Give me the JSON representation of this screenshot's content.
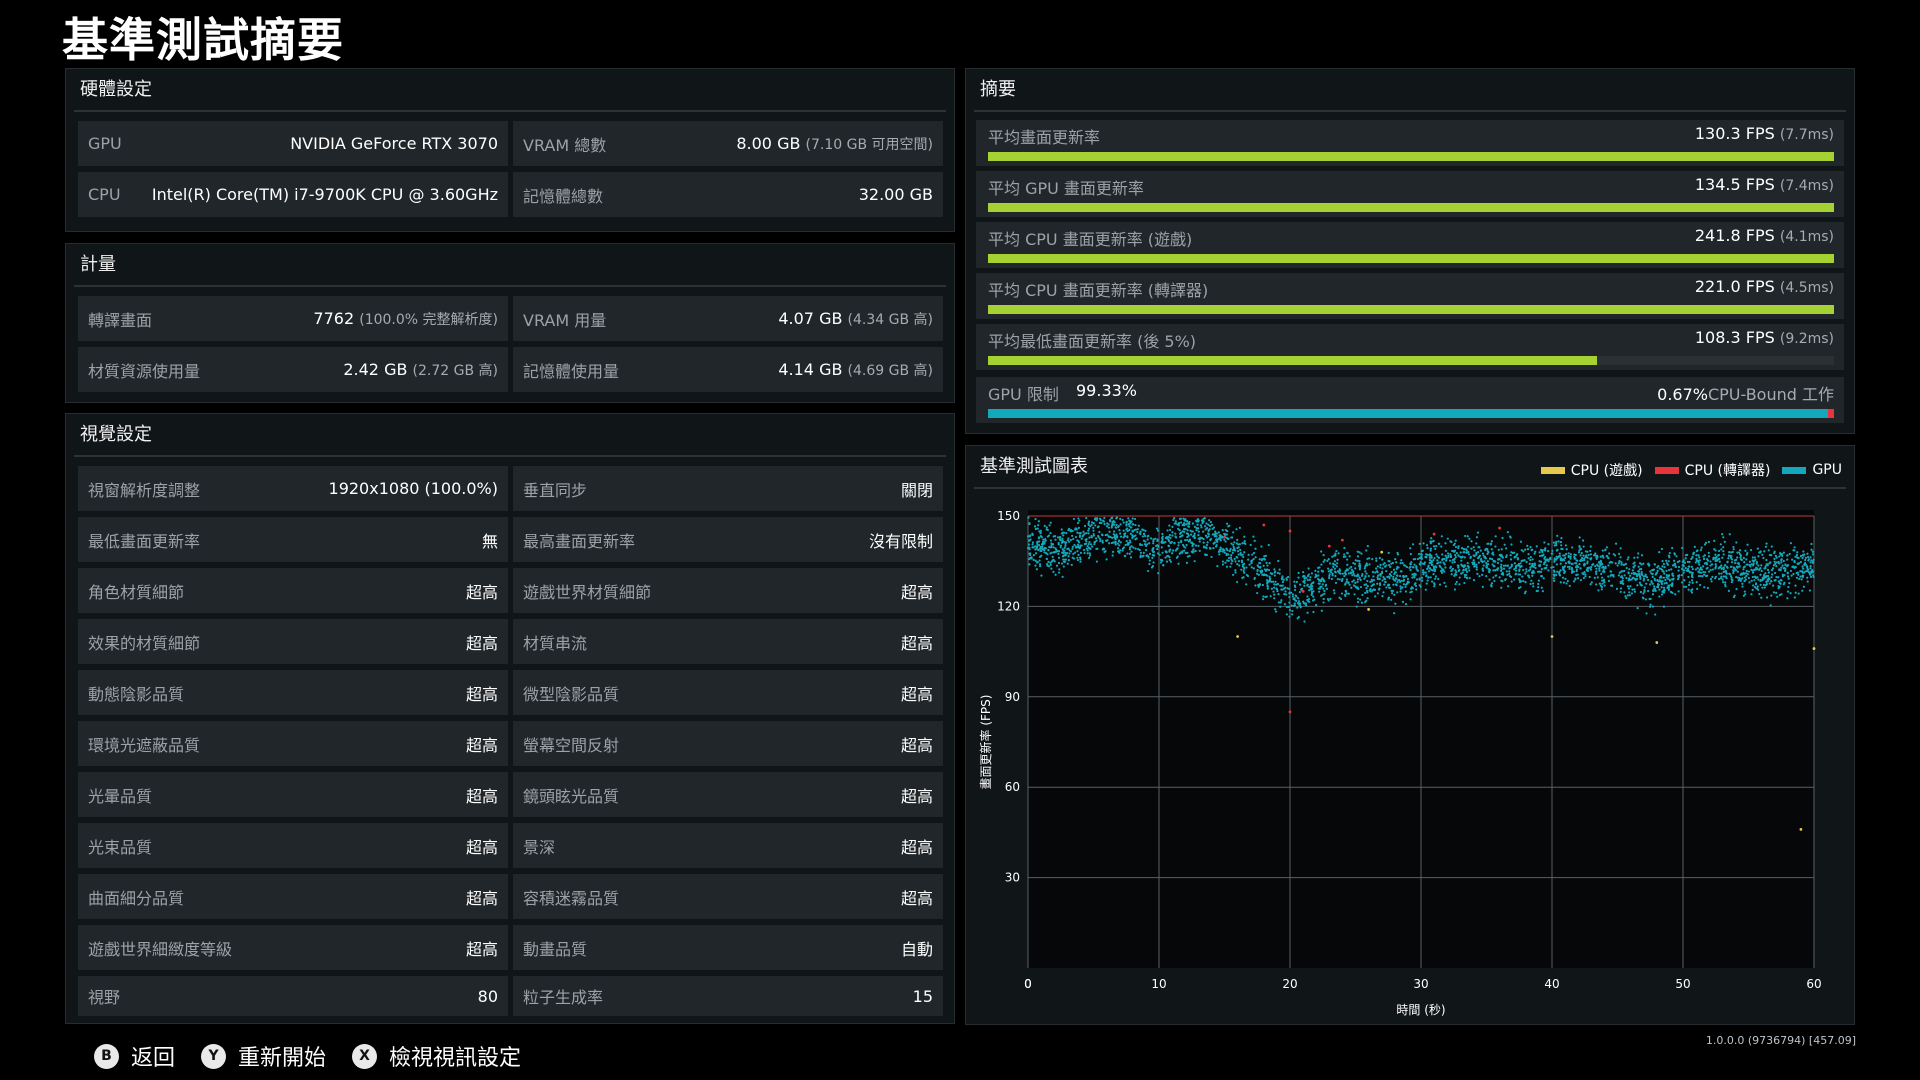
{
  "title": "基準測試摘要",
  "hardware": {
    "header": "硬體設定",
    "cells": [
      {
        "label": "GPU",
        "value": "NVIDIA GeForce RTX 3070",
        "sub": ""
      },
      {
        "label": "VRAM 總數",
        "value": "8.00 GB",
        "sub": "(7.10 GB 可用空間)"
      },
      {
        "label": "CPU",
        "value": "Intel(R) Core(TM) i7-9700K CPU @ 3.60GHz",
        "sub": ""
      },
      {
        "label": "記憶體總數",
        "value": "32.00 GB",
        "sub": ""
      }
    ]
  },
  "metrics": {
    "header": "計量",
    "cells": [
      {
        "label": "轉譯畫面",
        "value": "7762",
        "sub": "(100.0% 完整解析度)"
      },
      {
        "label": "VRAM 用量",
        "value": "4.07 GB",
        "sub": "(4.34 GB 高)"
      },
      {
        "label": "材質資源使用量",
        "value": "2.42 GB",
        "sub": "(2.72 GB 高)"
      },
      {
        "label": "記憶體使用量",
        "value": "4.14 GB",
        "sub": "(4.69 GB 高)"
      }
    ]
  },
  "visual": {
    "header": "視覺設定",
    "cells": [
      {
        "label": "視窗解析度調整",
        "value": "1920x1080 (100.0%)"
      },
      {
        "label": "垂直同步",
        "value": "關閉"
      },
      {
        "label": "最低畫面更新率",
        "value": "無"
      },
      {
        "label": "最高畫面更新率",
        "value": "沒有限制"
      },
      {
        "label": "角色材質細節",
        "value": "超高"
      },
      {
        "label": "遊戲世界材質細節",
        "value": "超高"
      },
      {
        "label": "效果的材質細節",
        "value": "超高"
      },
      {
        "label": "材質串流",
        "value": "超高"
      },
      {
        "label": "動態陰影品質",
        "value": "超高"
      },
      {
        "label": "微型陰影品質",
        "value": "超高"
      },
      {
        "label": "環境光遮蔽品質",
        "value": "超高"
      },
      {
        "label": "螢幕空間反射",
        "value": "超高"
      },
      {
        "label": "光暈品質",
        "value": "超高"
      },
      {
        "label": "鏡頭眩光品質",
        "value": "超高"
      },
      {
        "label": "光束品質",
        "value": "超高"
      },
      {
        "label": "景深",
        "value": "超高"
      },
      {
        "label": "曲面細分品質",
        "value": "超高"
      },
      {
        "label": "容積迷霧品質",
        "value": "超高"
      },
      {
        "label": "遊戲世界細緻度等級",
        "value": "超高"
      },
      {
        "label": "動畫品質",
        "value": "自動"
      },
      {
        "label": "視野",
        "value": "80"
      },
      {
        "label": "粒子生成率",
        "value": "15"
      }
    ]
  },
  "summary": {
    "header": "摘要",
    "rows": [
      {
        "label": "平均畫面更新率",
        "value": "130.3 FPS",
        "sub": "(7.7ms)",
        "fill": 1.0
      },
      {
        "label": "平均 GPU 畫面更新率",
        "value": "134.5 FPS",
        "sub": "(7.4ms)",
        "fill": 1.0
      },
      {
        "label": "平均 CPU 畫面更新率 (遊戲)",
        "value": "241.8 FPS",
        "sub": "(4.1ms)",
        "fill": 1.0
      },
      {
        "label": "平均 CPU 畫面更新率 (轉譯器)",
        "value": "221.0 FPS",
        "sub": "(4.5ms)",
        "fill": 1.0
      },
      {
        "label": "平均最低畫面更新率 (後 5%)",
        "value": "108.3 FPS",
        "sub": "(9.2ms)",
        "fill": 0.72
      }
    ],
    "gpu_bound": {
      "label": "GPU 限制",
      "value": "99.33%",
      "cpu_value": "0.67%",
      "cpu_label": "CPU-Bound 工作",
      "gpu_fraction": 0.9933
    }
  },
  "chart_panel": {
    "header": "基準測試圖表",
    "legend": [
      {
        "name": "CPU (遊戲)",
        "color": "#e6c84a"
      },
      {
        "name": "CPU (轉譯器)",
        "color": "#e8343a"
      },
      {
        "name": "GPU",
        "color": "#14a8bc"
      }
    ]
  },
  "chart_data": {
    "type": "scatter",
    "xlabel": "時間 (秒)",
    "ylabel": "畫面更新率 (FPS)",
    "xlim": [
      0,
      60
    ],
    "ylim": [
      0,
      150
    ],
    "xticks": [
      0,
      10,
      20,
      30,
      40,
      50,
      60
    ],
    "yticks": [
      30,
      60,
      90,
      120,
      150
    ],
    "grid": true,
    "legend_position": "top-right",
    "series": [
      {
        "name": "GPU",
        "color": "#14a8bc",
        "trend_x": [
          0,
          2,
          4,
          6,
          8,
          10,
          12,
          14,
          16,
          18,
          20,
          22,
          24,
          26,
          28,
          30,
          32,
          34,
          36,
          38,
          40,
          42,
          44,
          46,
          48,
          50,
          52,
          54,
          56,
          58,
          60
        ],
        "trend_y": [
          140,
          138,
          142,
          145,
          143,
          138,
          145,
          143,
          138,
          132,
          122,
          128,
          132,
          130,
          128,
          133,
          135,
          136,
          134,
          133,
          135,
          134,
          133,
          130,
          128,
          132,
          134,
          133,
          131,
          132,
          134
        ],
        "spread": 12
      },
      {
        "name": "CPU (轉譯器)",
        "color": "#e8343a",
        "points": [
          [
            18,
            147
          ],
          [
            20,
            145
          ],
          [
            24,
            142
          ],
          [
            15,
            143
          ],
          [
            36,
            146
          ],
          [
            31,
            144
          ],
          [
            20,
            85
          ],
          [
            21,
            125
          ],
          [
            23,
            140
          ]
        ]
      },
      {
        "name": "CPU (遊戲)",
        "color": "#e6c84a",
        "points": [
          [
            27,
            138
          ],
          [
            16,
            110
          ],
          [
            59,
            46
          ],
          [
            60,
            106
          ],
          [
            40,
            110
          ],
          [
            48,
            108
          ],
          [
            26,
            119
          ]
        ]
      }
    ]
  },
  "footer": {
    "back_key": "B",
    "back_label": "返回",
    "restart_key": "Y",
    "restart_label": "重新開始",
    "view_key": "X",
    "view_label": "檢視視訊設定",
    "version": "1.0.0.0 (9736794) [457.09]"
  }
}
